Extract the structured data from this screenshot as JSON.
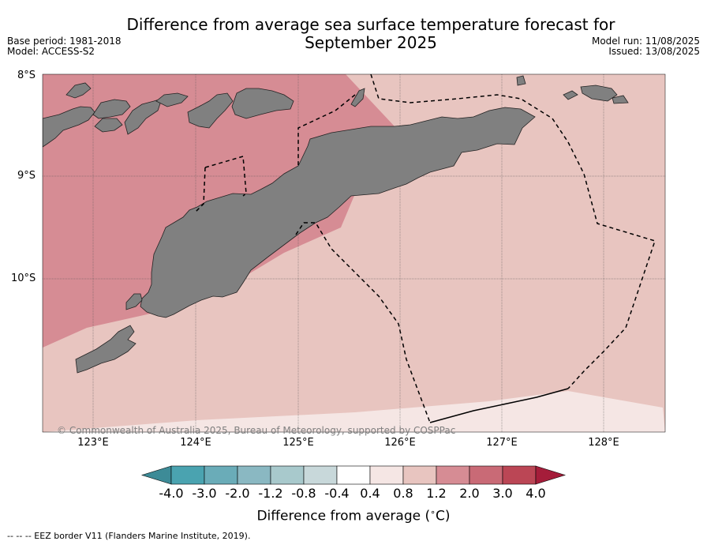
{
  "title_line1": "Difference from average sea surface temperature forecast for",
  "title_line2": "September 2025",
  "base_period": "Base period: 1981-2018",
  "model": "Model: ACCESS-S2",
  "model_run": "Model run: 11/08/2025",
  "issued": "Issued: 13/08/2025",
  "lat_labels": [
    "8°S",
    "9°S",
    "10°S"
  ],
  "lon_labels": [
    "123°E",
    "124°E",
    "125°E",
    "126°E",
    "127°E",
    "128°E"
  ],
  "copyright": "© Commonwealth of Australia 2025, Bureau of Meteorology, supported by COSPPac",
  "colorbar": {
    "labels": [
      "-4.0",
      "-3.0",
      "-2.0",
      "-1.2",
      "-0.8",
      "-0.4",
      "0.4",
      "0.8",
      "1.2",
      "2.0",
      "3.0",
      "4.0"
    ],
    "colors": [
      "#3d8b97",
      "#4aa3b0",
      "#6aacb8",
      "#8ab8c2",
      "#a8c9cc",
      "#c8d8da",
      "#ffffff",
      "#f5e6e4",
      "#e8c5c0",
      "#d68c94",
      "#c96a76",
      "#bb4655",
      "#a51d3a"
    ],
    "title": "Difference from average (",
    "unit_circ": "∘",
    "unit_c": "C)"
  },
  "map_colors": {
    "high": "#d68c94",
    "mid": "#e8c5c0",
    "low": "#f5e6e4",
    "land": "#808080"
  },
  "footer": "-- -- -- EEZ border V11 (Flanders Marine Institute, 2019)."
}
